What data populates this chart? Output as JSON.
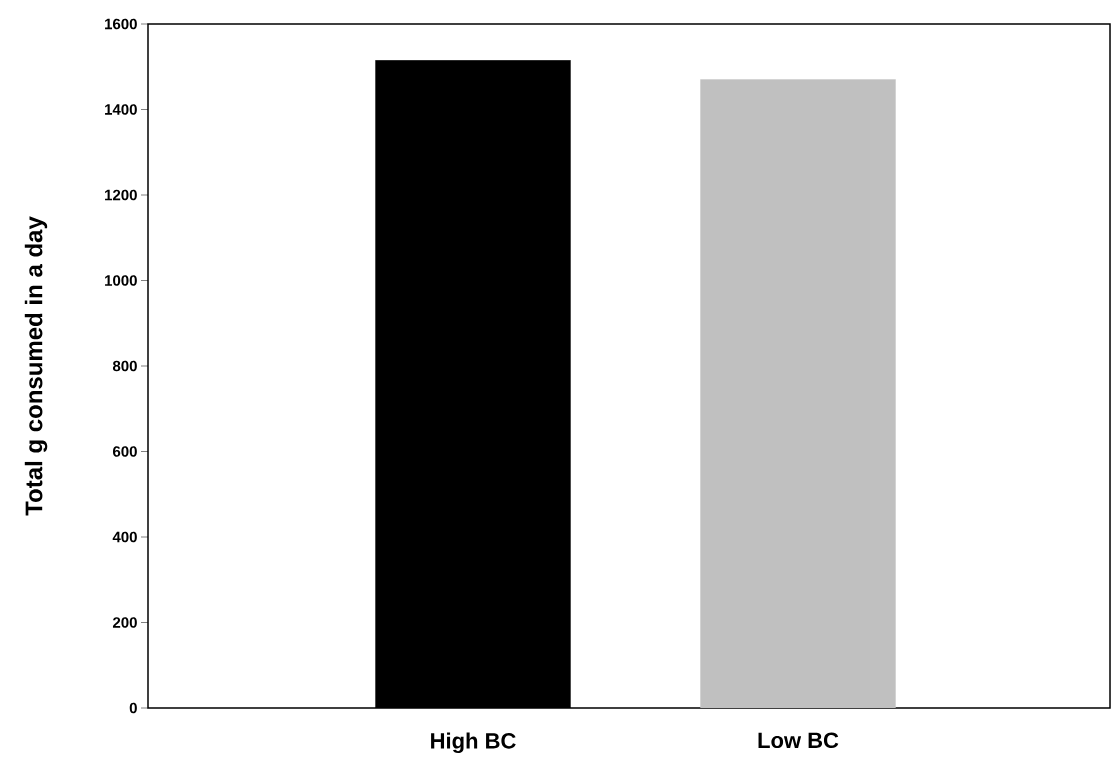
{
  "chart_data": {
    "type": "bar",
    "ylabel": "Total g consumed in a day",
    "categories": [
      "High BC",
      "Low BC"
    ],
    "values": [
      1515,
      1470
    ],
    "colors": [
      "#000000",
      "#c0c0c0"
    ],
    "ylim": [
      0,
      1600
    ],
    "yticks": [
      0,
      200,
      400,
      600,
      800,
      1000,
      1200,
      1400,
      1600
    ]
  }
}
